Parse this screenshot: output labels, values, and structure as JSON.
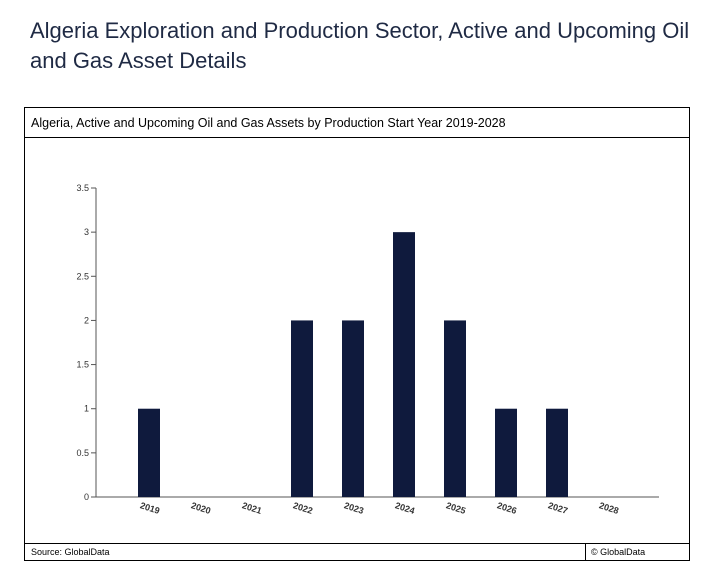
{
  "page": {
    "title": "Algeria Exploration and Production Sector, Active and Upcoming Oil and Gas Asset Details"
  },
  "figure": {
    "header": "Algeria, Active and Upcoming Oil and Gas Assets by Production Start Year 2019-2028",
    "source": "Source: GlobalData",
    "copyright": "© GlobalData"
  },
  "chart_data": {
    "type": "bar",
    "title": "Algeria, Active and Upcoming Oil and Gas Assets by Production Start Year 2019-2028",
    "xlabel": "",
    "ylabel": "",
    "categories": [
      "2019",
      "2020",
      "2021",
      "2022",
      "2023",
      "2024",
      "2025",
      "2026",
      "2027",
      "2028"
    ],
    "values": [
      1,
      0,
      0,
      2,
      2,
      3,
      2,
      1,
      1,
      0
    ],
    "ylim": [
      0,
      3.5
    ],
    "yticks": [
      "0",
      "0.5",
      "1",
      "1.5",
      "2",
      "2.5",
      "3",
      "3.5"
    ],
    "grid": false,
    "legend": "none",
    "bar_color": "#0f1a3d"
  }
}
